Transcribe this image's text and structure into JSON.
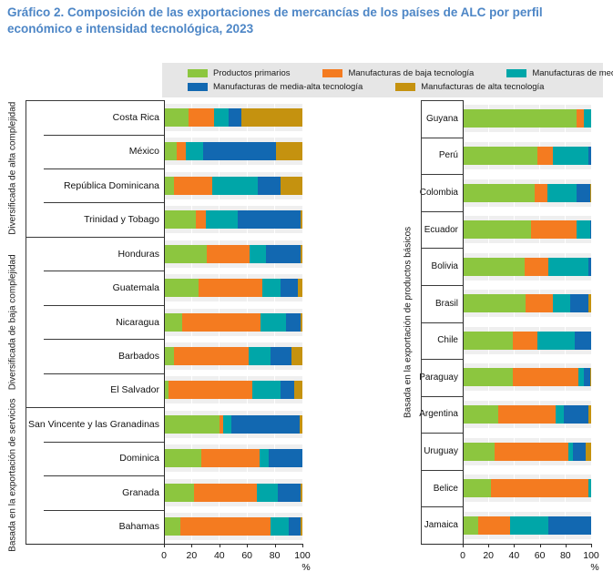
{
  "title": "Gráfico 2. Composición de las exportaciones de mercancías de los países de ALC por perfil económico e intensidad tecnológica, 2023",
  "legend": {
    "items": [
      {
        "label": "Productos primarios",
        "color": "#8CC63F"
      },
      {
        "label": "Manufacturas de baja tecnología",
        "color": "#F47B20"
      },
      {
        "label": "Manufacturas de media-baja tecnología",
        "color": "#00A6A8"
      },
      {
        "label": "Manufacturas de media-alta tecnología",
        "color": "#1268B1"
      },
      {
        "label": "Manufacturas de alta tecnología",
        "color": "#C5920F"
      }
    ]
  },
  "axis": {
    "ticks": [
      "0",
      "20",
      "40",
      "60",
      "80",
      "100"
    ],
    "unit": "%",
    "range": [
      0,
      100
    ]
  },
  "colors": {
    "title_blue": "#4D86C6",
    "legend_bg": "#E6E6E6",
    "track_gray": "#EFEFEF",
    "line_dark": "#3a3a3a"
  },
  "chart_data": [
    {
      "id": "left",
      "type": "bar",
      "stacked": true,
      "orientation": "horizontal",
      "xlim": [
        0,
        100
      ],
      "series_names": [
        "Productos primarios",
        "Manufacturas de baja tecnología",
        "Manufacturas de media-baja tecnología",
        "Manufacturas de media-alta tecnología",
        "Manufacturas de alta tecnología"
      ],
      "groups": [
        {
          "label": "Diversificada de alta complejidad",
          "rows": [
            {
              "country": "Costa Rica",
              "values": [
                18,
                18,
                11,
                9,
                44
              ]
            },
            {
              "country": "México",
              "values": [
                9,
                7,
                12,
                53,
                19
              ]
            },
            {
              "country": "República Dominicana",
              "values": [
                7,
                28,
                33,
                16,
                16
              ]
            },
            {
              "country": "Trinidad y Tobago",
              "values": [
                23,
                7,
                23,
                46,
                1
              ]
            }
          ]
        },
        {
          "label": "Diversificada de baja complejidad",
          "rows": [
            {
              "country": "Honduras",
              "values": [
                31,
                31,
                12,
                25,
                1
              ]
            },
            {
              "country": "Guatemala",
              "values": [
                25,
                46,
                13,
                13,
                3
              ]
            },
            {
              "country": "Nicaragua",
              "values": [
                13,
                57,
                18,
                11,
                1
              ]
            },
            {
              "country": "Barbados",
              "values": [
                7,
                54,
                16,
                15,
                8
              ]
            },
            {
              "country": "El Salvador",
              "values": [
                3,
                61,
                20,
                10,
                6
              ]
            }
          ]
        },
        {
          "label": "Basada en la exportación de servicios",
          "rows": [
            {
              "country": "San Vincente y  las Granadinas",
              "values": [
                40,
                3,
                6,
                49,
                2
              ]
            },
            {
              "country": "Dominica",
              "values": [
                27,
                42,
                7,
                24,
                0
              ]
            },
            {
              "country": "Granada",
              "values": [
                22,
                45,
                15,
                17,
                1
              ]
            },
            {
              "country": "Bahamas",
              "values": [
                12,
                65,
                13,
                9,
                1
              ]
            }
          ]
        }
      ]
    },
    {
      "id": "right",
      "type": "bar",
      "stacked": true,
      "orientation": "horizontal",
      "xlim": [
        0,
        100
      ],
      "series_names": [
        "Productos primarios",
        "Manufacturas de baja tecnología",
        "Manufacturas de media-baja tecnología",
        "Manufacturas de media-alta tecnología",
        "Manufacturas de alta tecnología"
      ],
      "groups": [
        {
          "label": "Basada en la exportación de productos básicos",
          "rows": [
            {
              "country": "Guyana",
              "values": [
                89,
                5,
                6,
                0,
                0
              ]
            },
            {
              "country": "Perú",
              "values": [
                58,
                12,
                28,
                2,
                0
              ]
            },
            {
              "country": "Colombia",
              "values": [
                56,
                10,
                23,
                10,
                1
              ]
            },
            {
              "country": "Ecuador",
              "values": [
                53,
                36,
                10,
                1,
                0
              ]
            },
            {
              "country": "Bolivia",
              "values": [
                48,
                19,
                31,
                2,
                0
              ]
            },
            {
              "country": "Brasil",
              "values": [
                49,
                21,
                14,
                14,
                2
              ]
            },
            {
              "country": "Chile",
              "values": [
                39,
                19,
                29,
                13,
                0
              ]
            },
            {
              "country": "Paraguay",
              "values": [
                39,
                51,
                4,
                5,
                1
              ]
            },
            {
              "country": "Argentina",
              "values": [
                28,
                44,
                7,
                19,
                2
              ]
            },
            {
              "country": "Uruguay",
              "values": [
                25,
                57,
                4,
                10,
                4
              ]
            },
            {
              "country": "Belice",
              "values": [
                22,
                76,
                2,
                0,
                0
              ]
            },
            {
              "country": "Jamaica",
              "values": [
                12,
                25,
                30,
                33,
                0
              ]
            }
          ]
        }
      ]
    }
  ]
}
